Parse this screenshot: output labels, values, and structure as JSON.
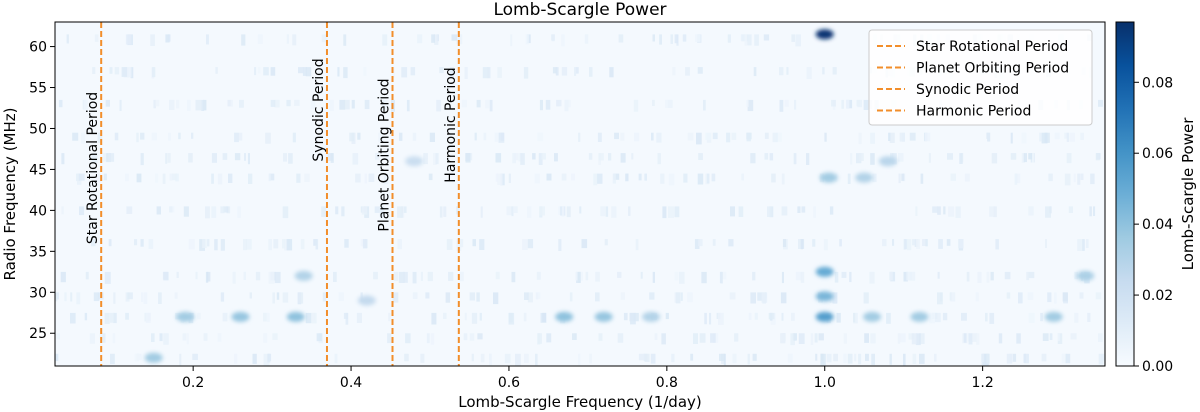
{
  "chart_data": {
    "type": "heatmap",
    "title": "Lomb-Scargle Power",
    "xlabel": "Lomb-Scargle Frequency (1/day)",
    "ylabel": "Radio Frequency (MHz)",
    "colorbar_label": "Lomb-Scargle Power",
    "xlim": [
      0.025,
      1.355
    ],
    "ylim": [
      21,
      63
    ],
    "x_ticks": [
      0.2,
      0.4,
      0.6,
      0.8,
      1.0,
      1.2
    ],
    "x_tick_labels": [
      "0.2",
      "0.4",
      "0.6",
      "0.8",
      "1.0",
      "1.2"
    ],
    "y_ticks": [
      25,
      30,
      35,
      40,
      45,
      50,
      55,
      60
    ],
    "y_tick_labels": [
      "25",
      "30",
      "35",
      "40",
      "45",
      "50",
      "55",
      "60"
    ],
    "colorbar_range": [
      0.0,
      0.097
    ],
    "colorbar_ticks": [
      0.0,
      0.02,
      0.04,
      0.06,
      0.08
    ],
    "colorbar_tick_labels": [
      "0.00",
      "0.02",
      "0.04",
      "0.06",
      "0.08"
    ],
    "colormap": "Blues",
    "line_color": "#f28e2b",
    "legend_position": "top-right",
    "reference_lines": [
      {
        "name": "Star Rotational Period",
        "x": 0.0835
      },
      {
        "name": "Planet Orbiting Period",
        "x": 0.4525
      },
      {
        "name": "Synodic Period",
        "x": 0.3695
      },
      {
        "name": "Harmonic Period",
        "x": 0.5365
      }
    ],
    "legend_order": [
      "Star Rotational Period",
      "Planet Orbiting Period",
      "Synodic Period",
      "Harmonic Period"
    ],
    "hotspots": [
      {
        "x": 1.0,
        "y": 61.5,
        "v": 0.095
      },
      {
        "x": 1.0,
        "y": 32.5,
        "v": 0.05
      },
      {
        "x": 1.0,
        "y": 27.0,
        "v": 0.055
      },
      {
        "x": 1.0,
        "y": 29.5,
        "v": 0.045
      },
      {
        "x": 1.005,
        "y": 44.0,
        "v": 0.035
      },
      {
        "x": 0.67,
        "y": 27.0,
        "v": 0.04
      },
      {
        "x": 0.72,
        "y": 27.0,
        "v": 0.038
      },
      {
        "x": 0.78,
        "y": 27.0,
        "v": 0.03
      },
      {
        "x": 0.33,
        "y": 27.0,
        "v": 0.04
      },
      {
        "x": 0.26,
        "y": 27.0,
        "v": 0.038
      },
      {
        "x": 0.19,
        "y": 27.0,
        "v": 0.035
      },
      {
        "x": 1.06,
        "y": 27.0,
        "v": 0.035
      },
      {
        "x": 1.12,
        "y": 27.0,
        "v": 0.035
      },
      {
        "x": 1.29,
        "y": 27.0,
        "v": 0.035
      },
      {
        "x": 1.33,
        "y": 32.0,
        "v": 0.032
      },
      {
        "x": 0.34,
        "y": 32.0,
        "v": 0.03
      },
      {
        "x": 0.42,
        "y": 29.0,
        "v": 0.025
      },
      {
        "x": 1.05,
        "y": 44.0,
        "v": 0.03
      },
      {
        "x": 1.08,
        "y": 46.0,
        "v": 0.028
      },
      {
        "x": 0.15,
        "y": 22.0,
        "v": 0.035
      },
      {
        "x": 0.48,
        "y": 46.0,
        "v": 0.022
      }
    ]
  }
}
